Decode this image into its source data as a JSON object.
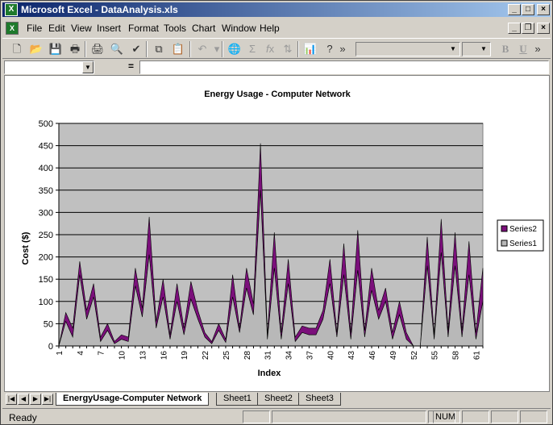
{
  "window": {
    "title": "Microsoft Excel - DataAnalysis.xls"
  },
  "menu": [
    "File",
    "Edit",
    "View",
    "Insert",
    "Format",
    "Tools",
    "Chart",
    "Window",
    "Help"
  ],
  "toolbar": {
    "icons": [
      "new-file",
      "open-folder",
      "save",
      "print-preview-setup",
      "print",
      "print-preview",
      "spelling",
      "copy",
      "paste",
      "undo",
      "hyperlink",
      "autosum",
      "function",
      "chart-wizard",
      "help"
    ],
    "font_combo": "",
    "size_combo": "",
    "bold_label": "B",
    "underline_label": "U",
    "more_label": "»"
  },
  "formula_bar": {
    "name_box": "",
    "equals": "="
  },
  "sheet_tabs": [
    "EnergyUsage-Computer Network",
    "Sheet1",
    "Sheet2",
    "Sheet3"
  ],
  "status": {
    "ready": "Ready",
    "num": "NUM"
  },
  "colors": {
    "series2": "#7b0f7b",
    "series1": "#b8b8b8",
    "plot_bg": "#c0c0c0"
  },
  "chart_data": {
    "type": "area",
    "title": "Energy Usage - Computer Network",
    "xlabel": "Index",
    "ylabel": "Cost ($)",
    "ylim": [
      0,
      500
    ],
    "yticks": [
      0,
      50,
      100,
      150,
      200,
      250,
      300,
      350,
      400,
      450,
      500
    ],
    "xtick_labels": [
      "1",
      "4",
      "7",
      "10",
      "13",
      "16",
      "19",
      "22",
      "25",
      "28",
      "31",
      "34",
      "37",
      "40",
      "43",
      "46",
      "49",
      "52",
      "55",
      "58",
      "61"
    ],
    "legend": "right",
    "grid": true,
    "series": [
      {
        "name": "Series2",
        "values": [
          0,
          75,
          40,
          190,
          80,
          140,
          20,
          50,
          10,
          25,
          20,
          175,
          85,
          290,
          55,
          150,
          25,
          140,
          40,
          145,
          80,
          30,
          10,
          50,
          15,
          160,
          40,
          175,
          95,
          455,
          25,
          255,
          30,
          195,
          20,
          45,
          40,
          40,
          80,
          195,
          30,
          230,
          30,
          260,
          35,
          175,
          80,
          130,
          30,
          100,
          30,
          0,
          0,
          245,
          25,
          285,
          35,
          255,
          35,
          235,
          30,
          175
        ]
      },
      {
        "name": "Series1",
        "values": [
          0,
          55,
          20,
          160,
          60,
          110,
          10,
          35,
          5,
          15,
          10,
          135,
          65,
          205,
          40,
          110,
          15,
          100,
          25,
          105,
          60,
          20,
          5,
          35,
          8,
          110,
          30,
          130,
          70,
          350,
          15,
          175,
          15,
          140,
          10,
          30,
          25,
          25,
          60,
          140,
          20,
          160,
          15,
          170,
          20,
          125,
          60,
          100,
          15,
          70,
          15,
          0,
          0,
          180,
          15,
          210,
          20,
          180,
          20,
          160,
          15,
          100
        ]
      }
    ]
  }
}
